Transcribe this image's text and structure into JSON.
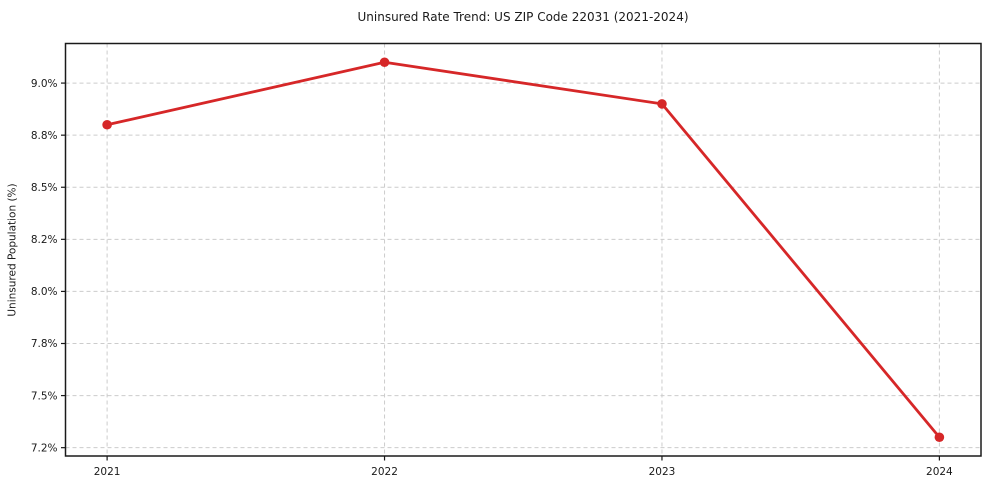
{
  "chart_data": {
    "type": "line",
    "title": "Uninsured Rate Trend: US ZIP Code 22031 (2021-2024)",
    "xlabel": "",
    "ylabel": "Uninsured Population (%)",
    "x": [
      2021,
      2022,
      2023,
      2024
    ],
    "values": [
      8.8,
      9.1,
      8.9,
      7.3
    ],
    "xticks": {
      "values": [
        2021,
        2022,
        2023,
        2024
      ],
      "labels": [
        "2021",
        "2022",
        "2023",
        "2024"
      ]
    },
    "yticks": {
      "values": [
        7.25,
        7.5,
        7.75,
        8.0,
        8.25,
        8.5,
        8.75,
        9.0
      ],
      "labels": [
        "7.2%",
        "7.5%",
        "7.8%",
        "8.0%",
        "8.2%",
        "8.5%",
        "8.8%",
        "9.0%"
      ]
    },
    "xlim": [
      2020.85,
      2024.15
    ],
    "ylim": [
      7.21,
      9.19
    ],
    "grid": true,
    "grid_style": "dashed",
    "legend": false,
    "colors": {
      "line": "#d62728",
      "marker": "#d62728",
      "grid": "#cccccc",
      "text": "#1a1a1a",
      "spine": "#1a1a1a",
      "background": "#ffffff"
    }
  }
}
